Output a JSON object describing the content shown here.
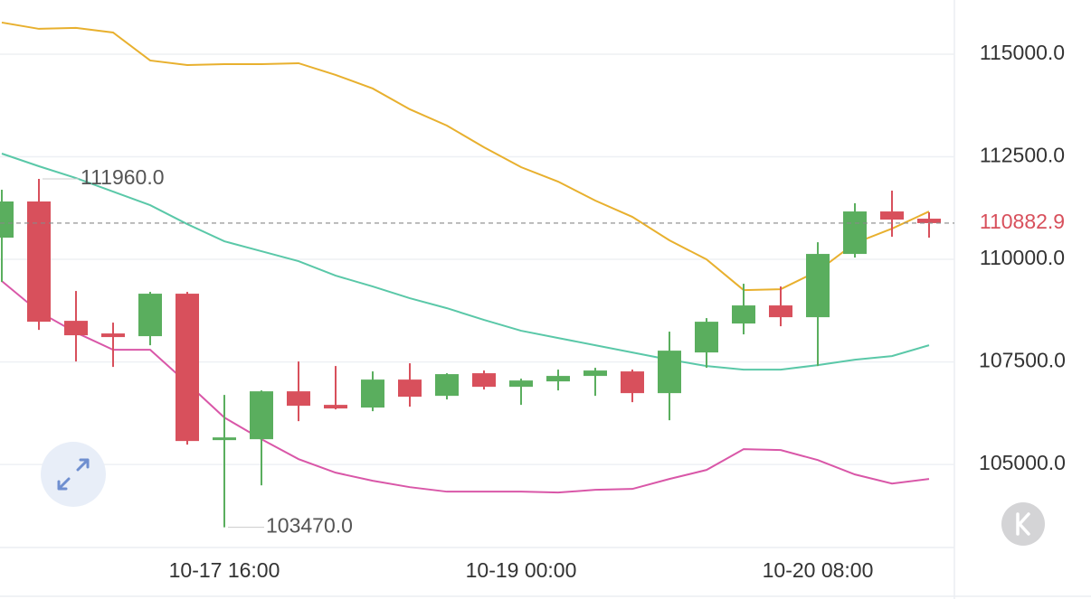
{
  "chart_data": {
    "type": "candlestick",
    "categories": [
      null,
      null,
      null,
      null,
      null,
      null,
      "10-17 16:00",
      null,
      null,
      null,
      null,
      null,
      null,
      null,
      "10-19 00:00",
      null,
      null,
      null,
      null,
      null,
      null,
      null,
      "10-20 08:00",
      null,
      null,
      null
    ],
    "open": [
      110529,
      111410,
      108502,
      108194,
      108128,
      109163,
      105595,
      105617,
      106784,
      106454,
      106388,
      107070,
      106674,
      107225,
      106894,
      107026,
      107159,
      107269,
      106740,
      107731,
      108436,
      108877,
      108590,
      110132,
      111167,
      110991
    ],
    "high": [
      111696,
      111960,
      109229,
      108458,
      109207,
      109207,
      106696,
      106806,
      107511,
      107401,
      107269,
      107467,
      107225,
      107291,
      107092,
      107313,
      107357,
      107313,
      108238,
      108568,
      109405,
      109339,
      110418,
      111366,
      111674,
      111145
    ],
    "low": [
      109449,
      108282,
      107511,
      107379,
      107907,
      105485,
      103470,
      104493,
      106057,
      106344,
      106300,
      106410,
      106586,
      106828,
      106454,
      106806,
      106674,
      106520,
      106079,
      107357,
      108172,
      108370,
      107401,
      110044,
      110551,
      110529
    ],
    "close": [
      111410,
      108480,
      108150,
      108106,
      109163,
      105573,
      105661,
      106784,
      106432,
      106366,
      107070,
      106652,
      107203,
      106894,
      107048,
      107159,
      107291,
      106740,
      107775,
      108480,
      108877,
      108590,
      110132,
      111167,
      110969,
      110882.9
    ],
    "up_color": "#5aae5e",
    "down_color": "#d8505c",
    "lines": [
      {
        "color": "#e8b02e",
        "values": [
          115771,
          115617,
          115639,
          115528,
          114846,
          114736,
          114758,
          114758,
          114780,
          114494,
          114163,
          113657,
          113260,
          112731,
          112247,
          111894,
          111432,
          111035,
          110463,
          110000,
          109251,
          109273,
          109714,
          110396,
          110749,
          111167
        ]
      },
      {
        "color": "#5ac8a8",
        "values": [
          112577,
          112269,
          111982,
          111652,
          111321,
          110859,
          110440,
          110198,
          109956,
          109603,
          109339,
          109053,
          108810,
          108524,
          108260,
          108084,
          107907,
          107731,
          107555,
          107401,
          107313,
          107313,
          107423,
          107555,
          107643,
          107907
        ]
      },
      {
        "color": "#d957a8",
        "values": [
          109471,
          108722,
          108216,
          107797,
          107797,
          106982,
          106145,
          105617,
          105132,
          104802,
          104604,
          104449,
          104339,
          104339,
          104339,
          104317,
          104383,
          104405,
          104648,
          104868,
          105374,
          105352,
          105110,
          104758,
          104537,
          104648
        ]
      }
    ],
    "ylim": [
      103000,
      116320
    ],
    "yticks": [
      {
        "value": 105000,
        "label": "105000.0"
      },
      {
        "value": 107500,
        "label": "107500.0"
      },
      {
        "value": 110000,
        "label": "110000.0"
      },
      {
        "value": 112500,
        "label": "112500.0"
      },
      {
        "value": 115000,
        "label": "115000.0"
      }
    ],
    "grid": true,
    "high_label": {
      "value": 111960,
      "label": "111960.0"
    },
    "low_label": {
      "value": 103470,
      "label": "103470.0"
    },
    "last_price": {
      "value": 110882.9,
      "label": "110882.9",
      "color": "#d8505c"
    }
  }
}
